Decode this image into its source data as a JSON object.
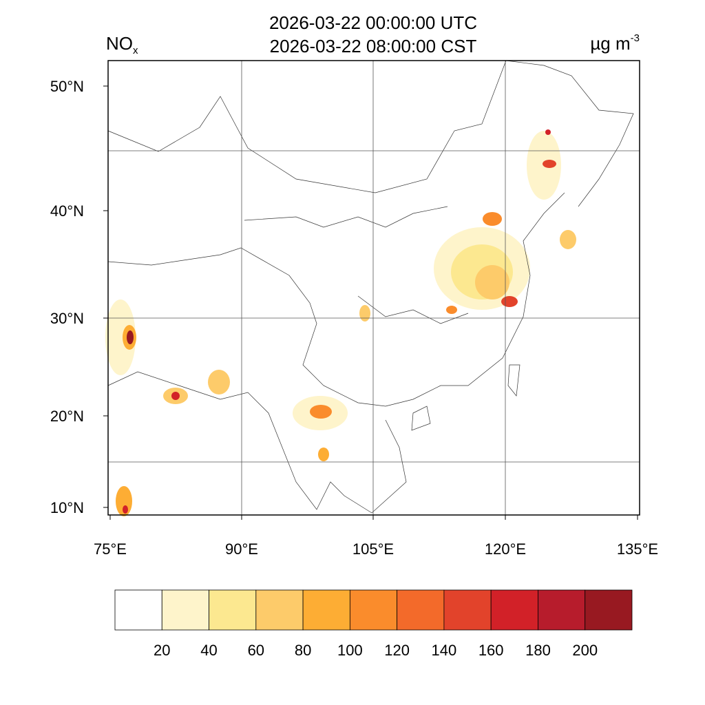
{
  "title": {
    "line1": "2026-03-22 00:00:00 UTC",
    "line2": "2026-03-22 08:00:00 CST"
  },
  "variable": {
    "name": "NO",
    "subscript": "x"
  },
  "units": {
    "text": "µg m",
    "exponent": "-3"
  },
  "map": {
    "lat_labels": [
      "50°N",
      "40°N",
      "30°N",
      "20°N",
      "10°N"
    ],
    "lon_labels": [
      "75°E",
      "90°E",
      "105°E",
      "120°E",
      "135°E"
    ]
  },
  "colorbar": {
    "levels": [
      20,
      40,
      60,
      80,
      100,
      120,
      140,
      160,
      180,
      200
    ],
    "colors": [
      "#ffffff",
      "#fef4cb",
      "#fce890",
      "#fdcb6a",
      "#fdad34",
      "#fa8c2c",
      "#f36a2a",
      "#e2432b",
      "#d22128",
      "#b71c2c",
      "#981921"
    ]
  }
}
